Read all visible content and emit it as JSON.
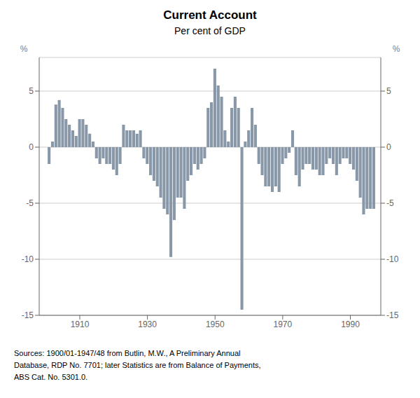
{
  "chart_data": {
    "type": "bar",
    "title": "Current Account",
    "subtitle": "Per cent of GDP",
    "ylabel": "%",
    "y2label": "%",
    "color": "#8898a8",
    "grid": true,
    "xlim": [
      1898,
      1999
    ],
    "xticks": [
      1910,
      1930,
      1950,
      1970,
      1990
    ],
    "ylim": [
      -15,
      8
    ],
    "yticks": [
      -15,
      -10,
      -5,
      0,
      5
    ],
    "y2lim": [
      -15,
      8
    ],
    "y2ticks": [
      -15,
      -10,
      -5,
      0,
      5
    ],
    "annotations": [
      "Sources: 1900/01-1947/48 from Butlin, M.W., A Preliminary Annual",
      "Database, RDP No. 7701; later Statistics are from Balance of Payments,",
      "ABS Cat. No. 5301.0."
    ],
    "x": [
      1901,
      1902,
      1903,
      1904,
      1905,
      1906,
      1907,
      1908,
      1909,
      1910,
      1911,
      1912,
      1913,
      1914,
      1915,
      1916,
      1917,
      1918,
      1919,
      1920,
      1921,
      1922,
      1923,
      1924,
      1925,
      1926,
      1927,
      1928,
      1929,
      1930,
      1931,
      1932,
      1933,
      1934,
      1935,
      1936,
      1937,
      1938,
      1939,
      1940,
      1941,
      1942,
      1943,
      1944,
      1945,
      1946,
      1947,
      1948,
      1949,
      1950,
      1951,
      1952,
      1953,
      1954,
      1955,
      1956,
      1957,
      1958,
      1959,
      1960,
      1961,
      1962,
      1963,
      1964,
      1965,
      1966,
      1967,
      1968,
      1969,
      1970,
      1971,
      1972,
      1973,
      1974,
      1975,
      1976,
      1977,
      1978,
      1979,
      1980,
      1981,
      1982,
      1983,
      1984,
      1985,
      1986,
      1987,
      1988,
      1989,
      1990,
      1991,
      1992,
      1993,
      1994,
      1995,
      1996,
      1997
    ],
    "values": [
      -1.5,
      0.5,
      3.8,
      4.2,
      3.5,
      2.5,
      2.0,
      1.5,
      1.0,
      2.5,
      2.5,
      2.0,
      1.2,
      0.5,
      -1.0,
      -1.5,
      -1.0,
      -1.5,
      -1.5,
      -2.0,
      -2.5,
      -1.5,
      2.0,
      1.5,
      1.5,
      1.5,
      1.2,
      1.5,
      -1.0,
      -1.5,
      -2.5,
      -3.0,
      -3.5,
      -4.5,
      -5.5,
      -6.0,
      -9.8,
      -6.5,
      -4.5,
      -4.5,
      -5.5,
      -3.0,
      -2.5,
      -1.5,
      -2.0,
      -1.5,
      -1.0,
      3.5,
      4.0,
      7.0,
      5.5,
      4.5,
      1.5,
      0.5,
      3.5,
      4.5,
      3.5,
      -14.5,
      0.5,
      1.5,
      3.5,
      2.0,
      -1.5,
      -2.5,
      -3.5,
      -3.5,
      -4.0,
      -3.5,
      -4.0,
      -1.5,
      -1.0,
      -0.5,
      1.5,
      -2.5,
      -3.5,
      -2.0,
      -1.5,
      -1.5,
      -2.0,
      -2.0,
      -2.5,
      -2.5,
      -1.5,
      -1.0,
      -1.5,
      -2.5,
      -1.5,
      -1.0,
      -1.0,
      -1.5,
      -2.0,
      -3.0,
      -4.5,
      -6.0,
      -5.5,
      -5.5,
      -5.5
    ]
  }
}
